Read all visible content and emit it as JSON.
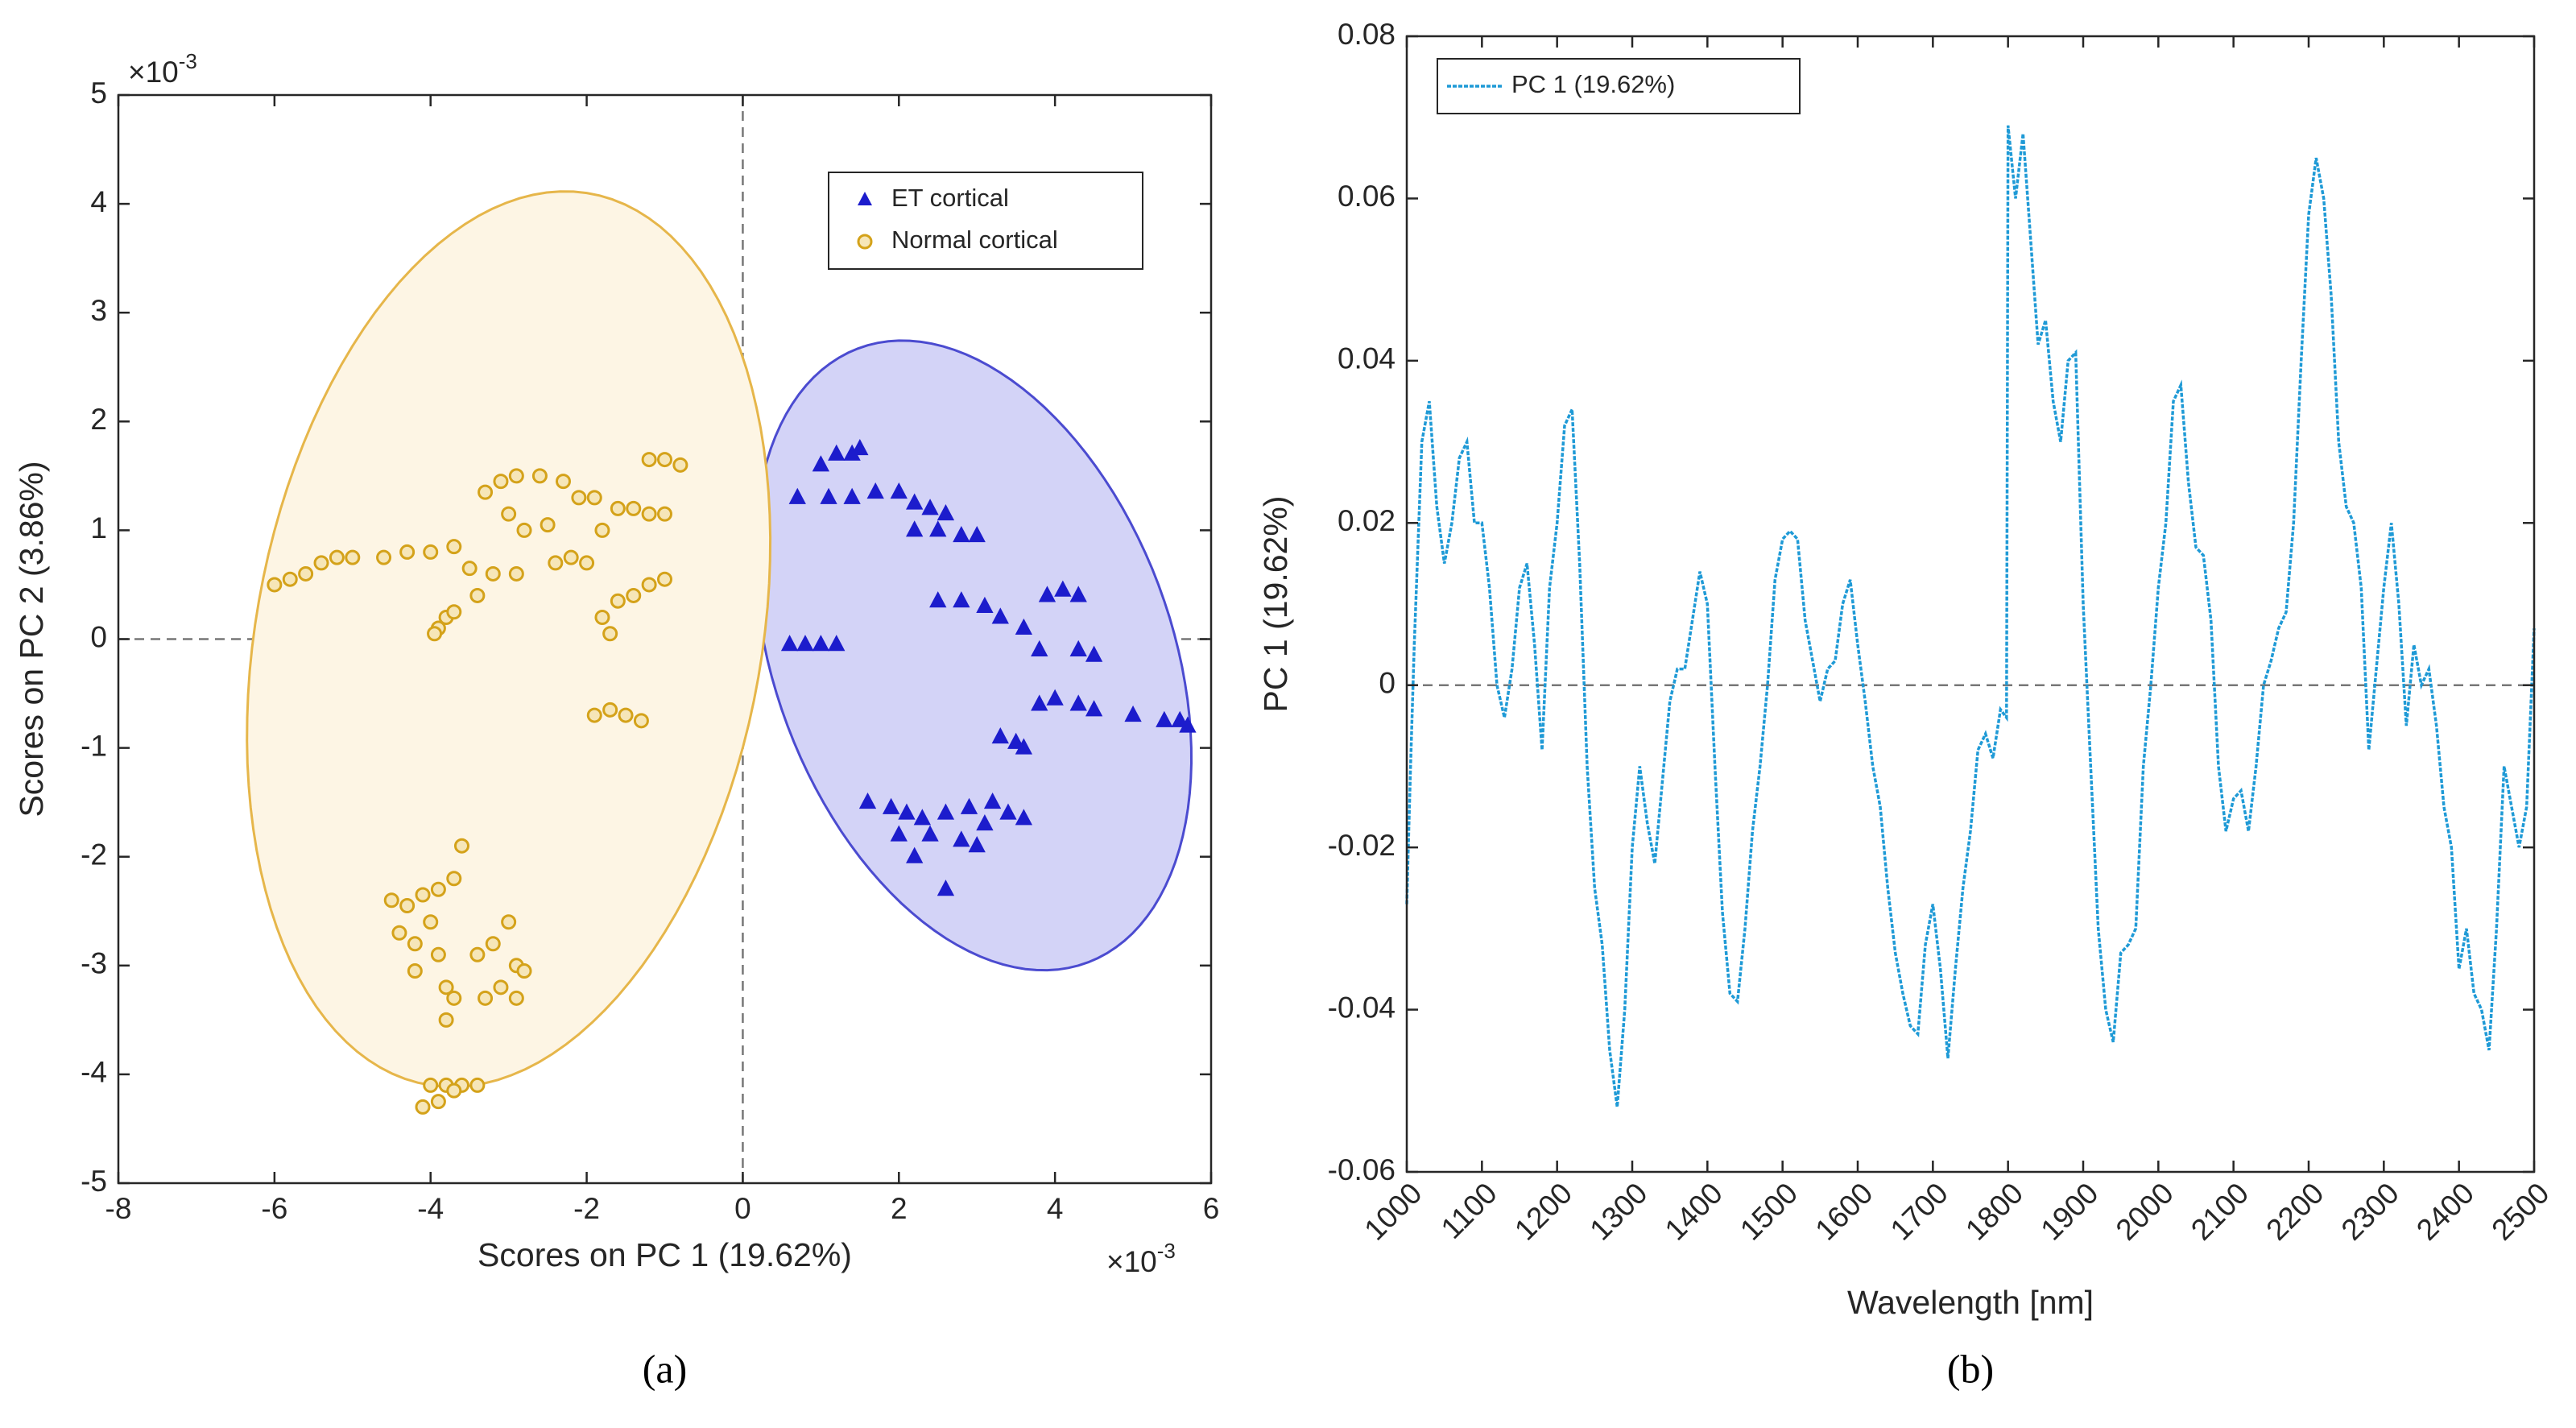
{
  "charts": [
    {
      "type": "scatter",
      "caption": "(a)",
      "xlabel": "Scores on PC 1 (19.62%)",
      "ylabel": "Scores on PC 2 (3.86%)",
      "x_multiplier": {
        "base": "×10",
        "exponent": "-3"
      },
      "y_multiplier": {
        "base": "×10",
        "exponent": "-3"
      },
      "xlim": [
        -8,
        6
      ],
      "xticks": [
        -8,
        -6,
        -4,
        -2,
        0,
        2,
        4,
        6
      ],
      "ylim": [
        -5,
        5
      ],
      "yticks": [
        -5,
        -4,
        -3,
        -2,
        -1,
        0,
        1,
        2,
        3,
        4,
        5
      ],
      "legend": "upper right",
      "series": [
        {
          "name": "ET cortical",
          "color": "#1c1ccc",
          "marker": "triangle",
          "ellipse": {
            "center": [
              2.95,
              -0.15
            ],
            "axis1": [
              -1.35,
              2.85
            ],
            "axis2": [
              2.45,
              0.5
            ],
            "fill": "#d3d3f7",
            "stroke": "#4b4bd0"
          },
          "x": [
            1.0,
            1.2,
            1.4,
            1.5,
            0.7,
            1.1,
            1.4,
            1.7,
            2.0,
            2.2,
            2.4,
            2.6,
            2.2,
            2.5,
            2.8,
            3.0,
            0.6,
            0.8,
            1.0,
            1.2,
            2.5,
            2.8,
            3.1,
            3.3,
            3.6,
            3.9,
            4.1,
            4.3,
            3.8,
            4.3,
            4.5,
            3.8,
            4.0,
            4.3,
            4.5,
            5.0,
            5.4,
            5.6,
            5.7,
            3.3,
            3.5,
            3.6,
            1.6,
            1.9,
            2.1,
            2.3,
            2.6,
            2.9,
            3.2,
            3.4,
            3.6,
            2.0,
            2.4,
            2.8,
            3.0,
            2.6,
            3.1,
            2.2
          ],
          "y": [
            1.6,
            1.7,
            1.7,
            1.75,
            1.3,
            1.3,
            1.3,
            1.35,
            1.35,
            1.25,
            1.2,
            1.15,
            1.0,
            1.0,
            0.95,
            0.95,
            -0.05,
            -0.05,
            -0.05,
            -0.05,
            0.35,
            0.35,
            0.3,
            0.2,
            0.1,
            0.4,
            0.45,
            0.4,
            -0.1,
            -0.1,
            -0.15,
            -0.6,
            -0.55,
            -0.6,
            -0.65,
            -0.7,
            -0.75,
            -0.75,
            -0.8,
            -0.9,
            -0.95,
            -1.0,
            -1.5,
            -1.55,
            -1.6,
            -1.65,
            -1.6,
            -1.55,
            -1.5,
            -1.6,
            -1.65,
            -1.8,
            -1.8,
            -1.85,
            -1.9,
            -2.3,
            -1.7,
            -2.0
          ]
        },
        {
          "name": "Normal cortical",
          "color": "#d4a21a",
          "marker": "circle",
          "ellipse": {
            "center": [
              -3.0,
              0.0
            ],
            "axis1": [
              1.0,
              4.1
            ],
            "axis2": [
              -3.2,
              0.35
            ],
            "fill": "#fdf5e4",
            "stroke": "#e6b64a"
          },
          "x": [
            -6.0,
            -5.8,
            -5.6,
            -5.4,
            -5.2,
            -5.0,
            -4.6,
            -4.3,
            -4.0,
            -3.7,
            -3.9,
            -3.8,
            -3.7,
            -3.95,
            -3.5,
            -3.2,
            -2.9,
            -3.4,
            -3.3,
            -3.1,
            -2.9,
            -2.6,
            -2.3,
            -3.0,
            -2.8,
            -2.5,
            -2.1,
            -1.9,
            -2.4,
            -2.2,
            -2.0,
            -1.8,
            -1.6,
            -1.4,
            -1.2,
            -1.0,
            -1.7,
            -1.6,
            -1.4,
            -1.2,
            -1.0,
            -1.8,
            -1.2,
            -1.0,
            -0.8,
            -1.9,
            -1.7,
            -1.5,
            -1.3,
            -4.5,
            -4.3,
            -4.1,
            -3.9,
            -3.7,
            -3.6,
            -4.4,
            -4.2,
            -4.0,
            -3.9,
            -3.8,
            -3.7,
            -3.8,
            -4.2,
            -3.4,
            -3.2,
            -3.0,
            -2.9,
            -2.8,
            -3.3,
            -3.1,
            -2.9,
            -4.0,
            -3.8,
            -3.6,
            -3.4,
            -4.1,
            -3.9,
            -3.7
          ],
          "y": [
            0.5,
            0.55,
            0.6,
            0.7,
            0.75,
            0.75,
            0.75,
            0.8,
            0.8,
            0.85,
            0.1,
            0.2,
            0.25,
            0.05,
            0.65,
            0.6,
            0.6,
            0.4,
            1.35,
            1.45,
            1.5,
            1.5,
            1.45,
            1.15,
            1.0,
            1.05,
            1.3,
            1.3,
            0.7,
            0.75,
            0.7,
            0.2,
            0.35,
            0.4,
            0.5,
            0.55,
            0.05,
            1.2,
            1.2,
            1.15,
            1.15,
            1.0,
            1.65,
            1.65,
            1.6,
            -0.7,
            -0.65,
            -0.7,
            -0.75,
            -2.4,
            -2.45,
            -2.35,
            -2.3,
            -2.2,
            -1.9,
            -2.7,
            -2.8,
            -2.6,
            -2.9,
            -3.2,
            -3.3,
            -3.5,
            -3.05,
            -2.9,
            -2.8,
            -2.6,
            -3.0,
            -3.05,
            -3.3,
            -3.2,
            -3.3,
            -4.1,
            -4.1,
            -4.1,
            -4.1,
            -4.3,
            -4.25,
            -4.15
          ]
        }
      ]
    },
    {
      "type": "line",
      "caption": "(b)",
      "xlabel": "Wavelength [nm]",
      "ylabel": "PC 1 (19.62%)",
      "xlim": [
        1000,
        2500
      ],
      "xticks": [
        1000,
        1100,
        1200,
        1300,
        1400,
        1500,
        1600,
        1700,
        1800,
        1900,
        2000,
        2100,
        2200,
        2300,
        2400,
        2500
      ],
      "ylim": [
        -0.06,
        0.08
      ],
      "yticks": [
        -0.06,
        -0.04,
        -0.02,
        0,
        0.02,
        0.04,
        0.06,
        0.08
      ],
      "legend": "upper left",
      "series": [
        {
          "name": "PC 1 (19.62%)",
          "color": "#1f9ad6",
          "x": [
            1000,
            1005,
            1010,
            1020,
            1030,
            1040,
            1050,
            1060,
            1070,
            1080,
            1090,
            1100,
            1110,
            1120,
            1130,
            1140,
            1150,
            1160,
            1170,
            1180,
            1190,
            1200,
            1210,
            1220,
            1230,
            1240,
            1250,
            1260,
            1270,
            1280,
            1290,
            1300,
            1310,
            1320,
            1330,
            1340,
            1350,
            1360,
            1370,
            1380,
            1390,
            1400,
            1410,
            1420,
            1430,
            1440,
            1450,
            1460,
            1470,
            1480,
            1490,
            1500,
            1510,
            1520,
            1530,
            1540,
            1550,
            1560,
            1570,
            1580,
            1590,
            1600,
            1610,
            1620,
            1630,
            1640,
            1650,
            1660,
            1670,
            1680,
            1690,
            1700,
            1710,
            1720,
            1730,
            1740,
            1750,
            1760,
            1770,
            1780,
            1790,
            1798,
            1800,
            1810,
            1820,
            1830,
            1840,
            1850,
            1860,
            1870,
            1880,
            1890,
            1900,
            1910,
            1920,
            1930,
            1940,
            1950,
            1960,
            1970,
            1980,
            1990,
            2000,
            2010,
            2020,
            2030,
            2040,
            2050,
            2060,
            2070,
            2080,
            2090,
            2100,
            2110,
            2120,
            2130,
            2140,
            2150,
            2160,
            2170,
            2180,
            2190,
            2200,
            2210,
            2220,
            2230,
            2240,
            2250,
            2260,
            2270,
            2280,
            2290,
            2300,
            2310,
            2320,
            2330,
            2340,
            2350,
            2360,
            2370,
            2380,
            2390,
            2400,
            2410,
            2420,
            2430,
            2440,
            2450,
            2460,
            2470,
            2480,
            2490,
            2500
          ],
          "values": [
            -0.027,
            -0.01,
            0.005,
            0.03,
            0.035,
            0.022,
            0.015,
            0.02,
            0.028,
            0.03,
            0.02,
            0.02,
            0.012,
            0.0,
            -0.004,
            0.002,
            0.012,
            0.015,
            0.005,
            -0.008,
            0.012,
            0.02,
            0.032,
            0.034,
            0.015,
            -0.01,
            -0.025,
            -0.032,
            -0.045,
            -0.052,
            -0.04,
            -0.02,
            -0.01,
            -0.017,
            -0.022,
            -0.012,
            -0.002,
            0.002,
            0.002,
            0.008,
            0.014,
            0.01,
            -0.01,
            -0.028,
            -0.038,
            -0.039,
            -0.03,
            -0.018,
            -0.01,
            0.0,
            0.013,
            0.018,
            0.019,
            0.018,
            0.008,
            0.003,
            -0.002,
            0.002,
            0.003,
            0.01,
            0.013,
            0.005,
            -0.002,
            -0.01,
            -0.015,
            -0.025,
            -0.033,
            -0.038,
            -0.042,
            -0.043,
            -0.032,
            -0.027,
            -0.035,
            -0.046,
            -0.035,
            -0.025,
            -0.018,
            -0.008,
            -0.006,
            -0.009,
            -0.003,
            -0.004,
            0.069,
            0.06,
            0.068,
            0.055,
            0.042,
            0.045,
            0.035,
            0.03,
            0.04,
            0.041,
            0.01,
            -0.01,
            -0.03,
            -0.04,
            -0.044,
            -0.033,
            -0.032,
            -0.03,
            -0.01,
            0.0,
            0.012,
            0.02,
            0.035,
            0.037,
            0.025,
            0.017,
            0.016,
            0.008,
            -0.01,
            -0.018,
            -0.014,
            -0.013,
            -0.018,
            -0.01,
            0.0,
            0.003,
            0.007,
            0.009,
            0.02,
            0.04,
            0.058,
            0.065,
            0.06,
            0.048,
            0.03,
            0.022,
            0.02,
            0.012,
            -0.008,
            0.002,
            0.012,
            0.02,
            0.01,
            -0.005,
            0.005,
            0.0,
            0.002,
            -0.005,
            -0.015,
            -0.02,
            -0.035,
            -0.03,
            -0.038,
            -0.04,
            -0.045,
            -0.03,
            -0.01,
            -0.015,
            -0.02,
            -0.015,
            0.007
          ]
        }
      ]
    }
  ]
}
